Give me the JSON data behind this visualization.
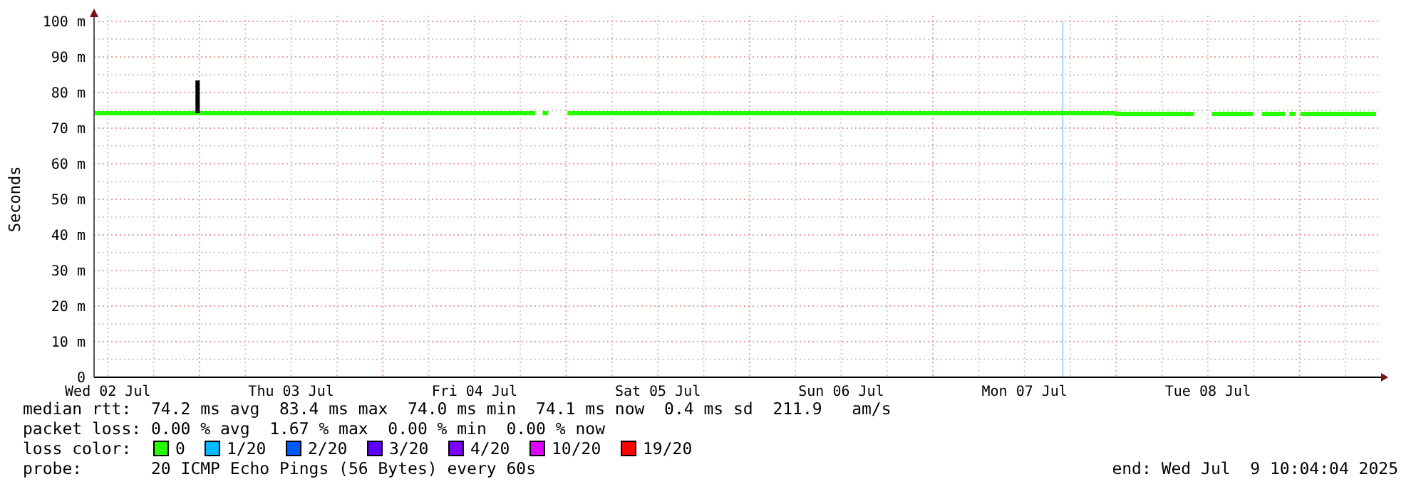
{
  "chart_data": {
    "type": "line",
    "ylabel": "Seconds",
    "xlim": [
      "2025-07-02T10:12",
      "2025-07-09T10:40"
    ],
    "xticks": [
      {
        "value": "2025-07-02T12:00",
        "label": "Wed 02 Jul"
      },
      {
        "value": "2025-07-02T18:00",
        "label": null
      },
      {
        "value": "2025-07-03T00:00",
        "label": null
      },
      {
        "value": "2025-07-03T06:00",
        "label": null
      },
      {
        "value": "2025-07-03T12:00",
        "label": "Thu 03 Jul"
      },
      {
        "value": "2025-07-03T18:00",
        "label": null
      },
      {
        "value": "2025-07-04T00:00",
        "label": null
      },
      {
        "value": "2025-07-04T06:00",
        "label": null
      },
      {
        "value": "2025-07-04T12:00",
        "label": "Fri 04 Jul"
      },
      {
        "value": "2025-07-04T18:00",
        "label": null
      },
      {
        "value": "2025-07-05T00:00",
        "label": null
      },
      {
        "value": "2025-07-05T06:00",
        "label": null
      },
      {
        "value": "2025-07-05T12:00",
        "label": "Sat 05 Jul"
      },
      {
        "value": "2025-07-05T18:00",
        "label": null
      },
      {
        "value": "2025-07-06T00:00",
        "label": null
      },
      {
        "value": "2025-07-06T06:00",
        "label": null
      },
      {
        "value": "2025-07-06T12:00",
        "label": "Sun 06 Jul"
      },
      {
        "value": "2025-07-06T18:00",
        "label": null
      },
      {
        "value": "2025-07-07T00:00",
        "label": null
      },
      {
        "value": "2025-07-07T06:00",
        "label": null
      },
      {
        "value": "2025-07-07T12:00",
        "label": "Mon 07 Jul"
      },
      {
        "value": "2025-07-07T18:00",
        "label": null
      },
      {
        "value": "2025-07-08T00:00",
        "label": null
      },
      {
        "value": "2025-07-08T06:00",
        "label": null
      },
      {
        "value": "2025-07-08T12:00",
        "label": "Tue 08 Jul"
      },
      {
        "value": "2025-07-08T18:00",
        "label": null
      },
      {
        "value": "2025-07-09T00:00",
        "label": null
      },
      {
        "value": "2025-07-09T06:00",
        "label": null
      }
    ],
    "ylim": [
      0,
      100
    ],
    "yticks": [
      0,
      {
        "value": 5,
        "label": null
      },
      {
        "value": 10,
        "label": "10 m"
      },
      {
        "value": 15,
        "label": null
      },
      {
        "value": 20,
        "label": "20 m"
      },
      {
        "value": 25,
        "label": null
      },
      {
        "value": 30,
        "label": "30 m"
      },
      {
        "value": 35,
        "label": null
      },
      {
        "value": 40,
        "label": "40 m"
      },
      {
        "value": 45,
        "label": null
      },
      {
        "value": 50,
        "label": "50 m"
      },
      {
        "value": 55,
        "label": null
      },
      {
        "value": 60,
        "label": "60 m"
      },
      {
        "value": 65,
        "label": null
      },
      {
        "value": 70,
        "label": "70 m"
      },
      {
        "value": 75,
        "label": null
      },
      {
        "value": 80,
        "label": "80 m"
      },
      {
        "value": 85,
        "label": null
      },
      {
        "value": 90,
        "label": "90 m"
      },
      {
        "value": 95,
        "label": null
      },
      {
        "value": 100,
        "label": "100 m"
      }
    ],
    "grid": true,
    "legend": "bottom",
    "legend_title": "loss color:",
    "ref_lines": [
      {
        "axis": "x",
        "value": "2025-07-07T17:00",
        "color": "#a0d8f0"
      }
    ],
    "series": [
      {
        "name": "0",
        "color": "#26ff00",
        "x": [
          "2025-07-02T10:12",
          "2025-07-04T19:58",
          "2025-07-04T20:20",
          "2025-07-04T20:54",
          "2025-07-04T21:39",
          "2025-07-04T22:30",
          "2025-07-05T00:10",
          "2025-07-07T23:50",
          "2025-07-07T23:51",
          "2025-07-08T10:12",
          "2025-07-08T11:00",
          "2025-07-08T12:31",
          "2025-07-08T17:54",
          "2025-07-08T18:30",
          "2025-07-08T19:04",
          "2025-07-08T22:07",
          "2025-07-08T22:25",
          "2025-07-08T22:40",
          "2025-07-08T23:30",
          "2025-07-08T23:45",
          "2025-07-09T00:06",
          "2025-07-09T10:00"
        ],
        "values": [
          74.2,
          74.2,
          null,
          74.2,
          74.2,
          null,
          74.2,
          74.2,
          74.0,
          74.0,
          null,
          74.0,
          74.0,
          null,
          74.0,
          74.0,
          null,
          74.0,
          74.0,
          null,
          74.0,
          74.0
        ]
      },
      {
        "color": "#000000",
        "x": [
          "2025-07-02T23:45",
          "2025-07-02T23:45"
        ],
        "values": [
          74.2,
          83.4
        ]
      },
      {
        "name": "1/20",
        "color": "#00b8ff"
      },
      {
        "name": "2/20",
        "color": "#0059ff"
      },
      {
        "name": "3/20",
        "color": "#5e00ff"
      },
      {
        "name": "4/20",
        "color": "#7e00ff"
      },
      {
        "name": "10/20",
        "color": "#dd00ff"
      },
      {
        "name": "19/20",
        "color": "#ff0000"
      }
    ],
    "annotations": [
      "median rtt:  74.2 ms avg  83.4 ms max  74.0 ms min  74.1 ms now  0.4 ms sd  211.9   am/s",
      "packet loss: 0.00 % avg  1.67 % max  0.00 % min  0.00 % now",
      "probe:       20 ICMP Echo Pings (56 Bytes) every 60s",
      "end: Wed Jul  9 10:04:04 2025"
    ]
  }
}
